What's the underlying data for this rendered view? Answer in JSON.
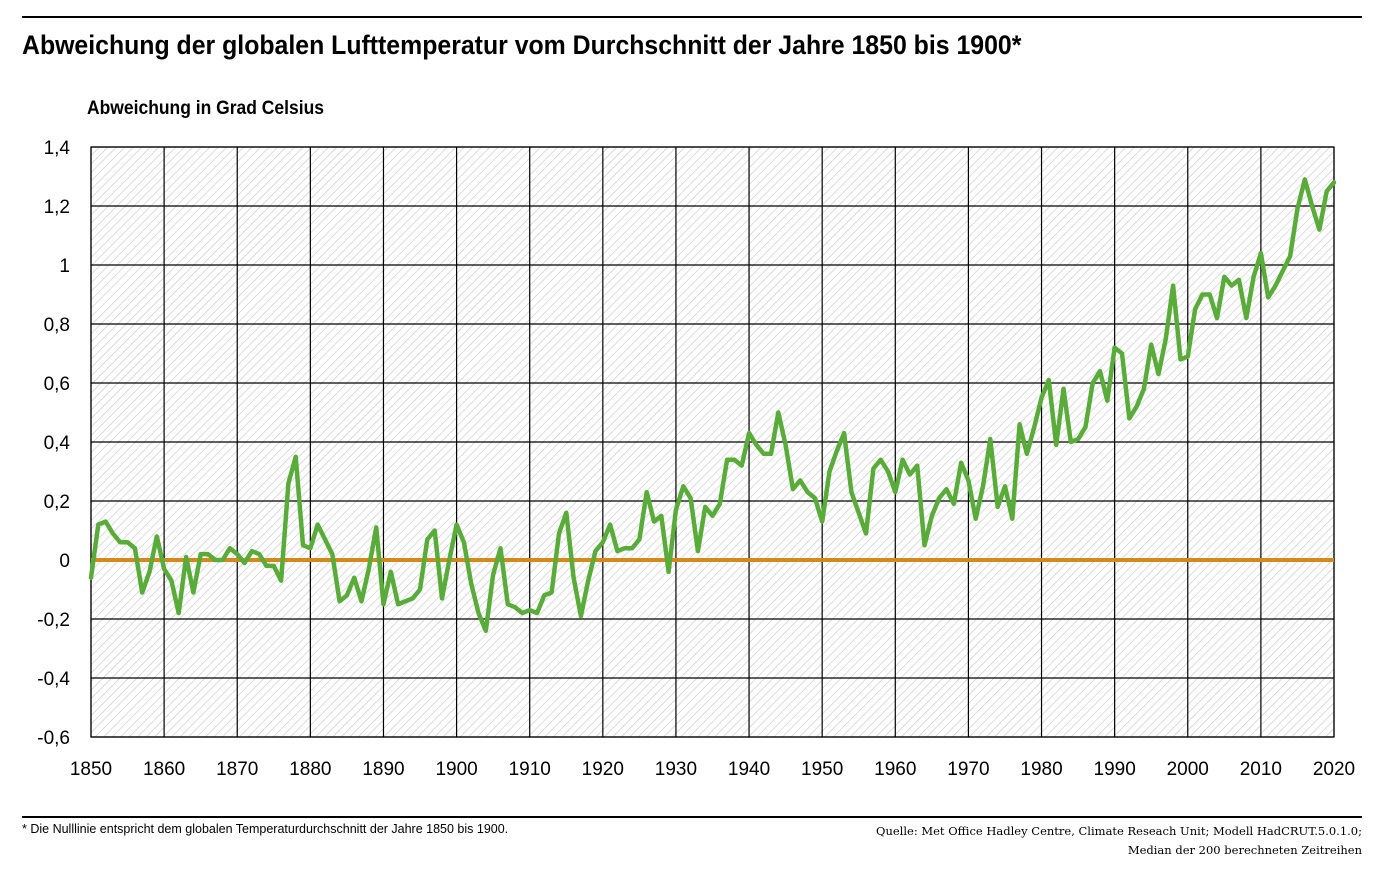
{
  "header": {
    "title": "Abweichung der globalen Lufttemperatur vom Durchschnitt der Jahre 1850 bis 1900*",
    "ylabel": "Abweichung in Grad Celsius"
  },
  "footer": {
    "footnote": "* Die Nulllinie entspricht dem globalen Temperaturdurchschnitt der Jahre 1850 bis 1900.",
    "source_line1": "Quelle: Met Office Hadley Centre, Climate Reseach Unit; Modell HadCRUT.5.0.1.0;",
    "source_line2": "Median der 200 berechneten Zeitreihen"
  },
  "colors": {
    "series": "#5aac3a",
    "zero_line": "#d4891c",
    "grid": "#000000",
    "hatch": "#c8c8c8"
  },
  "chart_data": {
    "type": "line",
    "title": "Abweichung der globalen Lufttemperatur vom Durchschnitt der Jahre 1850 bis 1900*",
    "xlabel": "",
    "ylabel": "Abweichung in Grad Celsius",
    "xlim": [
      1850,
      2020
    ],
    "ylim": [
      -0.6,
      1.4
    ],
    "x_ticks": [
      1850,
      1860,
      1870,
      1880,
      1890,
      1900,
      1910,
      1920,
      1930,
      1940,
      1950,
      1960,
      1970,
      1980,
      1990,
      2000,
      2010,
      2020
    ],
    "y_ticks": [
      -0.6,
      -0.4,
      -0.2,
      0,
      0.2,
      0.4,
      0.6,
      0.8,
      1,
      1.2,
      1.4
    ],
    "y_tick_labels": [
      "-0,6",
      "-0,4",
      "-0,2",
      "0",
      "0,2",
      "0,4",
      "0,6",
      "0,8",
      "1",
      "1,2",
      "1,4"
    ],
    "grid": true,
    "background_pattern": "diagonal-hatch",
    "reference_line": {
      "y": 0
    },
    "x": [
      1850,
      1851,
      1852,
      1853,
      1854,
      1855,
      1856,
      1857,
      1858,
      1859,
      1860,
      1861,
      1862,
      1863,
      1864,
      1865,
      1866,
      1867,
      1868,
      1869,
      1870,
      1871,
      1872,
      1873,
      1874,
      1875,
      1876,
      1877,
      1878,
      1879,
      1880,
      1881,
      1882,
      1883,
      1884,
      1885,
      1886,
      1887,
      1888,
      1889,
      1890,
      1891,
      1892,
      1893,
      1894,
      1895,
      1896,
      1897,
      1898,
      1899,
      1900,
      1901,
      1902,
      1903,
      1904,
      1905,
      1906,
      1907,
      1908,
      1909,
      1910,
      1911,
      1912,
      1913,
      1914,
      1915,
      1916,
      1917,
      1918,
      1919,
      1920,
      1921,
      1922,
      1923,
      1924,
      1925,
      1926,
      1927,
      1928,
      1929,
      1930,
      1931,
      1932,
      1933,
      1934,
      1935,
      1936,
      1937,
      1938,
      1939,
      1940,
      1941,
      1942,
      1943,
      1944,
      1945,
      1946,
      1947,
      1948,
      1949,
      1950,
      1951,
      1952,
      1953,
      1954,
      1955,
      1956,
      1957,
      1958,
      1959,
      1960,
      1961,
      1962,
      1963,
      1964,
      1965,
      1966,
      1967,
      1968,
      1969,
      1970,
      1971,
      1972,
      1973,
      1974,
      1975,
      1976,
      1977,
      1978,
      1979,
      1980,
      1981,
      1982,
      1983,
      1984,
      1985,
      1986,
      1987,
      1988,
      1989,
      1990,
      1991,
      1992,
      1993,
      1994,
      1995,
      1996,
      1997,
      1998,
      1999,
      2000,
      2001,
      2002,
      2003,
      2004,
      2005,
      2006,
      2007,
      2008,
      2009,
      2010,
      2011,
      2012,
      2013,
      2014,
      2015,
      2016,
      2017,
      2018,
      2019,
      2020
    ],
    "series": [
      {
        "values": [
          -0.06,
          0.12,
          0.13,
          0.09,
          0.06,
          0.06,
          0.04,
          -0.11,
          -0.04,
          0.08,
          -0.03,
          -0.07,
          -0.18,
          0.01,
          -0.11,
          0.02,
          0.02,
          0.0,
          0.0,
          0.04,
          0.02,
          -0.01,
          0.03,
          0.02,
          -0.02,
          -0.02,
          -0.07,
          0.26,
          0.35,
          0.05,
          0.04,
          0.12,
          0.07,
          0.02,
          -0.14,
          -0.12,
          -0.06,
          -0.14,
          -0.03,
          0.11,
          -0.15,
          -0.04,
          -0.15,
          -0.14,
          -0.13,
          -0.1,
          0.07,
          0.1,
          -0.13,
          0.0,
          0.12,
          0.06,
          -0.08,
          -0.18,
          -0.24,
          -0.05,
          0.04,
          -0.15,
          -0.16,
          -0.18,
          -0.17,
          -0.18,
          -0.12,
          -0.11,
          0.09,
          0.16,
          -0.06,
          -0.19,
          -0.07,
          0.03,
          0.06,
          0.12,
          0.03,
          0.04,
          0.04,
          0.07,
          0.23,
          0.13,
          0.15,
          -0.04,
          0.17,
          0.25,
          0.21,
          0.03,
          0.18,
          0.15,
          0.19,
          0.34,
          0.34,
          0.32,
          0.43,
          0.39,
          0.36,
          0.36,
          0.5,
          0.39,
          0.24,
          0.27,
          0.23,
          0.21,
          0.13,
          0.3,
          0.37,
          0.43,
          0.23,
          0.16,
          0.09,
          0.31,
          0.34,
          0.3,
          0.23,
          0.34,
          0.29,
          0.32,
          0.05,
          0.15,
          0.21,
          0.24,
          0.19,
          0.33,
          0.27,
          0.14,
          0.25,
          0.41,
          0.18,
          0.25,
          0.14,
          0.46,
          0.36,
          0.45,
          0.55,
          0.61,
          0.39,
          0.58,
          0.4,
          0.41,
          0.45,
          0.6,
          0.64,
          0.54,
          0.72,
          0.7,
          0.48,
          0.52,
          0.58,
          0.73,
          0.63,
          0.75,
          0.93,
          0.68,
          0.69,
          0.85,
          0.9,
          0.9,
          0.82,
          0.96,
          0.93,
          0.95,
          0.82,
          0.96,
          1.04,
          0.89,
          0.93,
          0.98,
          1.03,
          1.19,
          1.29,
          1.2,
          1.12,
          1.25,
          1.28
        ]
      }
    ]
  }
}
